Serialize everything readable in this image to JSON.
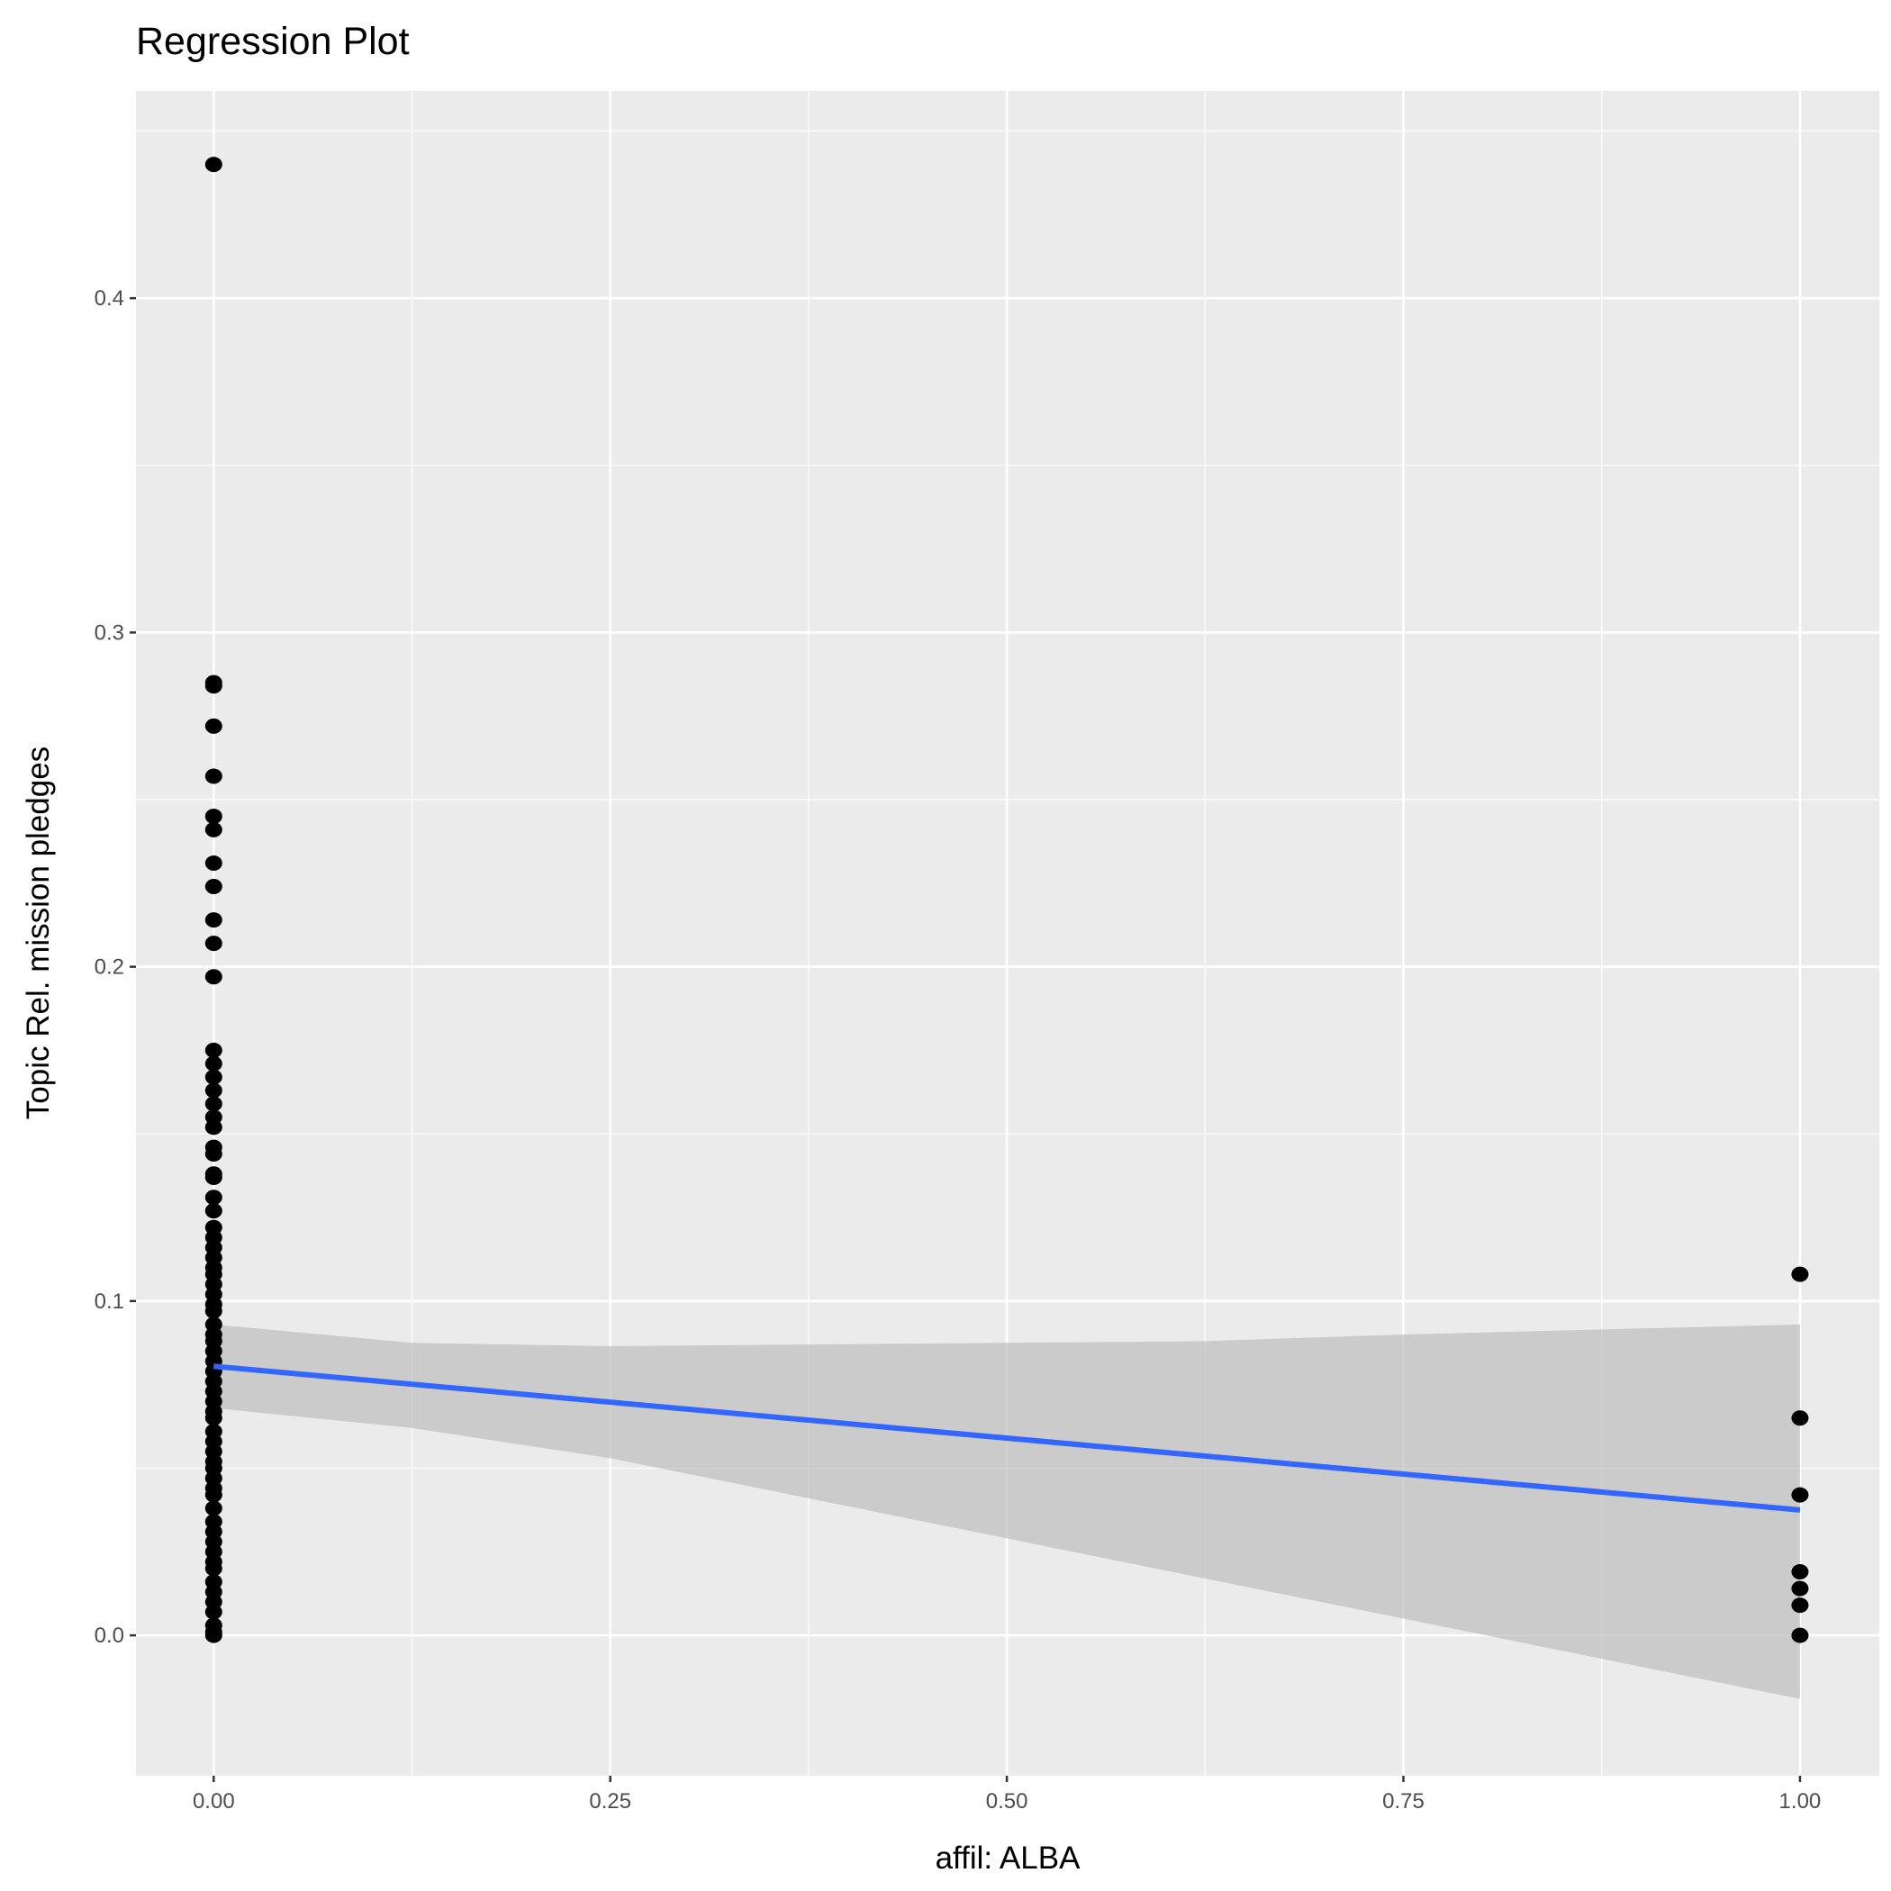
{
  "chart_data": {
    "type": "scatter",
    "title": "Regression Plot",
    "xlabel": "affil: ALBA",
    "ylabel": "Topic Rel. mission pledges",
    "xlim": [
      -0.049,
      1.05
    ],
    "ylim": [
      -0.042,
      0.462
    ],
    "x_ticks": [
      "0.00",
      "0.25",
      "0.50",
      "0.75",
      "1.00"
    ],
    "x_tick_values": [
      0,
      0.25,
      0.5,
      0.75,
      1
    ],
    "y_ticks": [
      "0.0",
      "0.1",
      "0.2",
      "0.3",
      "0.4"
    ],
    "y_tick_values": [
      0,
      0.1,
      0.2,
      0.3,
      0.4
    ],
    "grid": true,
    "points": {
      "x0": [
        0.44,
        0.285,
        0.284,
        0.272,
        0.257,
        0.245,
        0.241,
        0.231,
        0.224,
        0.214,
        0.207,
        0.197,
        0.175,
        0.171,
        0.167,
        0.163,
        0.159,
        0.155,
        0.152,
        0.146,
        0.144,
        0.138,
        0.137,
        0.131,
        0.127,
        0.122,
        0.119,
        0.116,
        0.113,
        0.11,
        0.108,
        0.105,
        0.102,
        0.099,
        0.097,
        0.093,
        0.09,
        0.088,
        0.085,
        0.082,
        0.079,
        0.076,
        0.073,
        0.07,
        0.067,
        0.065,
        0.061,
        0.058,
        0.055,
        0.052,
        0.05,
        0.047,
        0.044,
        0.042,
        0.038,
        0.034,
        0.031,
        0.028,
        0.025,
        0.022,
        0.02,
        0.016,
        0.013,
        0.01,
        0.007,
        0.003,
        0.001,
        0.0
      ],
      "x1": [
        0.108,
        0.065,
        0.042,
        0.019,
        0.014,
        0.009,
        0.0
      ]
    },
    "fit": {
      "x": [
        0,
        0.125,
        0.25,
        0.375,
        0.5,
        0.625,
        0.75,
        0.875,
        1
      ],
      "y": [
        0.0805,
        0.075,
        0.0698,
        0.0644,
        0.059,
        0.0537,
        0.0483,
        0.043,
        0.0375
      ],
      "lower": [
        0.068,
        0.062,
        0.053,
        0.041,
        0.029,
        0.017,
        0.005,
        -0.007,
        -0.019
      ],
      "upper": [
        0.093,
        0.0875,
        0.0865,
        0.087,
        0.0875,
        0.088,
        0.09,
        0.0915,
        0.093
      ]
    },
    "colors": {
      "panel": "#ebebeb",
      "grid": "#ffffff",
      "point": "#000000",
      "line": "#3366ff",
      "band": "#bebebe"
    }
  }
}
